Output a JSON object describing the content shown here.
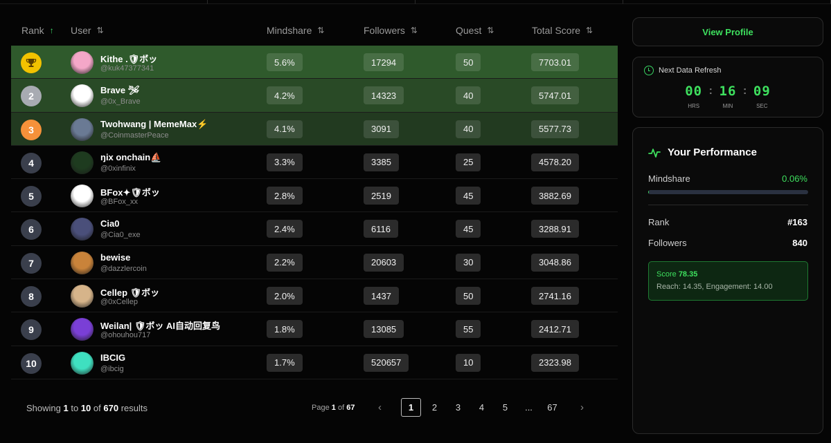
{
  "columns": {
    "rank": "Rank",
    "user": "User",
    "mindshare": "Mindshare",
    "followers": "Followers",
    "quest": "Quest",
    "total_score": "Total Score"
  },
  "rows": [
    {
      "rank": "1",
      "name": "Kithe .🛡ボッ",
      "handle": "@kuk47377341",
      "mindshare": "5.6%",
      "followers": "17294",
      "quest": "50",
      "score": "7703.01",
      "avatar_color": "#f4a7c8"
    },
    {
      "rank": "2",
      "name": "Brave 🛩",
      "handle": "@0x_Brave",
      "mindshare": "4.2%",
      "followers": "14323",
      "quest": "40",
      "score": "5747.01",
      "avatar_color": "#ffffff"
    },
    {
      "rank": "3",
      "name": "Twohwang | MemeMax⚡",
      "handle": "@CoinmasterPeace",
      "mindshare": "4.1%",
      "followers": "3091",
      "quest": "40",
      "score": "5577.73",
      "avatar_color": "#6a7a94"
    },
    {
      "rank": "4",
      "name": "ŋix onchain⛵",
      "handle": "@0xinfinix",
      "mindshare": "3.3%",
      "followers": "3385",
      "quest": "25",
      "score": "4578.20",
      "avatar_color": "#1e3b1f"
    },
    {
      "rank": "5",
      "name": "BFox✦🛡ボッ",
      "handle": "@BFox_xx",
      "mindshare": "2.8%",
      "followers": "2519",
      "quest": "45",
      "score": "3882.69",
      "avatar_color": "#ffffff"
    },
    {
      "rank": "6",
      "name": "Cia0",
      "handle": "@Cia0_exe",
      "mindshare": "2.4%",
      "followers": "6116",
      "quest": "45",
      "score": "3288.91",
      "avatar_color": "#4a4f7a"
    },
    {
      "rank": "7",
      "name": "bewise",
      "handle": "@dazzlercoin",
      "mindshare": "2.2%",
      "followers": "20603",
      "quest": "30",
      "score": "3048.86",
      "avatar_color": "#c9833a"
    },
    {
      "rank": "8",
      "name": "Cellep 🛡ボッ",
      "handle": "@0xCellep",
      "mindshare": "2.0%",
      "followers": "1437",
      "quest": "50",
      "score": "2741.16",
      "avatar_color": "#d6b48a"
    },
    {
      "rank": "9",
      "name": "Weilan| 🛡ボッ AI自动回复鸟",
      "handle": "@ohouhou717",
      "mindshare": "1.8%",
      "followers": "13085",
      "quest": "55",
      "score": "2412.71",
      "avatar_color": "#7a3fd6"
    },
    {
      "rank": "10",
      "name": "IBCIG",
      "handle": "@ibcig",
      "mindshare": "1.7%",
      "followers": "520657",
      "quest": "10",
      "score": "2323.98",
      "avatar_color": "#3fe0c0"
    }
  ],
  "footer": {
    "showing_prefix": "Showing",
    "from": "1",
    "to_word": "to",
    "to": "10",
    "of_word": "of",
    "total": "670",
    "results_word": "results",
    "page_word": "Page",
    "page_current": "1",
    "page_of": "of",
    "page_total": "67",
    "pages": [
      "1",
      "2",
      "3",
      "4",
      "5",
      "...",
      "67"
    ],
    "prev": "‹",
    "next": "›"
  },
  "sidebar": {
    "view_profile": "View Profile",
    "refresh_title": "Next Data Refresh",
    "timer": {
      "hrs": "00",
      "min": "16",
      "sec": "09",
      "hrs_label": "HRS",
      "min_label": "MIN",
      "sec_label": "SEC"
    },
    "performance": {
      "title": "Your Performance",
      "mindshare_label": "Mindshare",
      "mindshare_value": "0.06%",
      "mindshare_fraction": 0.0006,
      "rank_label": "Rank",
      "rank_value": "#163",
      "followers_label": "Followers",
      "followers_value": "840",
      "score_label": "Score",
      "score_value": "78.35",
      "breakdown": "Reach: 14.35, Engagement: 14.00"
    }
  },
  "colors": {
    "accent": "#3ee05e",
    "gold": "#f2c200",
    "silver": "#a8abb2",
    "bronze": "#f5913a"
  }
}
